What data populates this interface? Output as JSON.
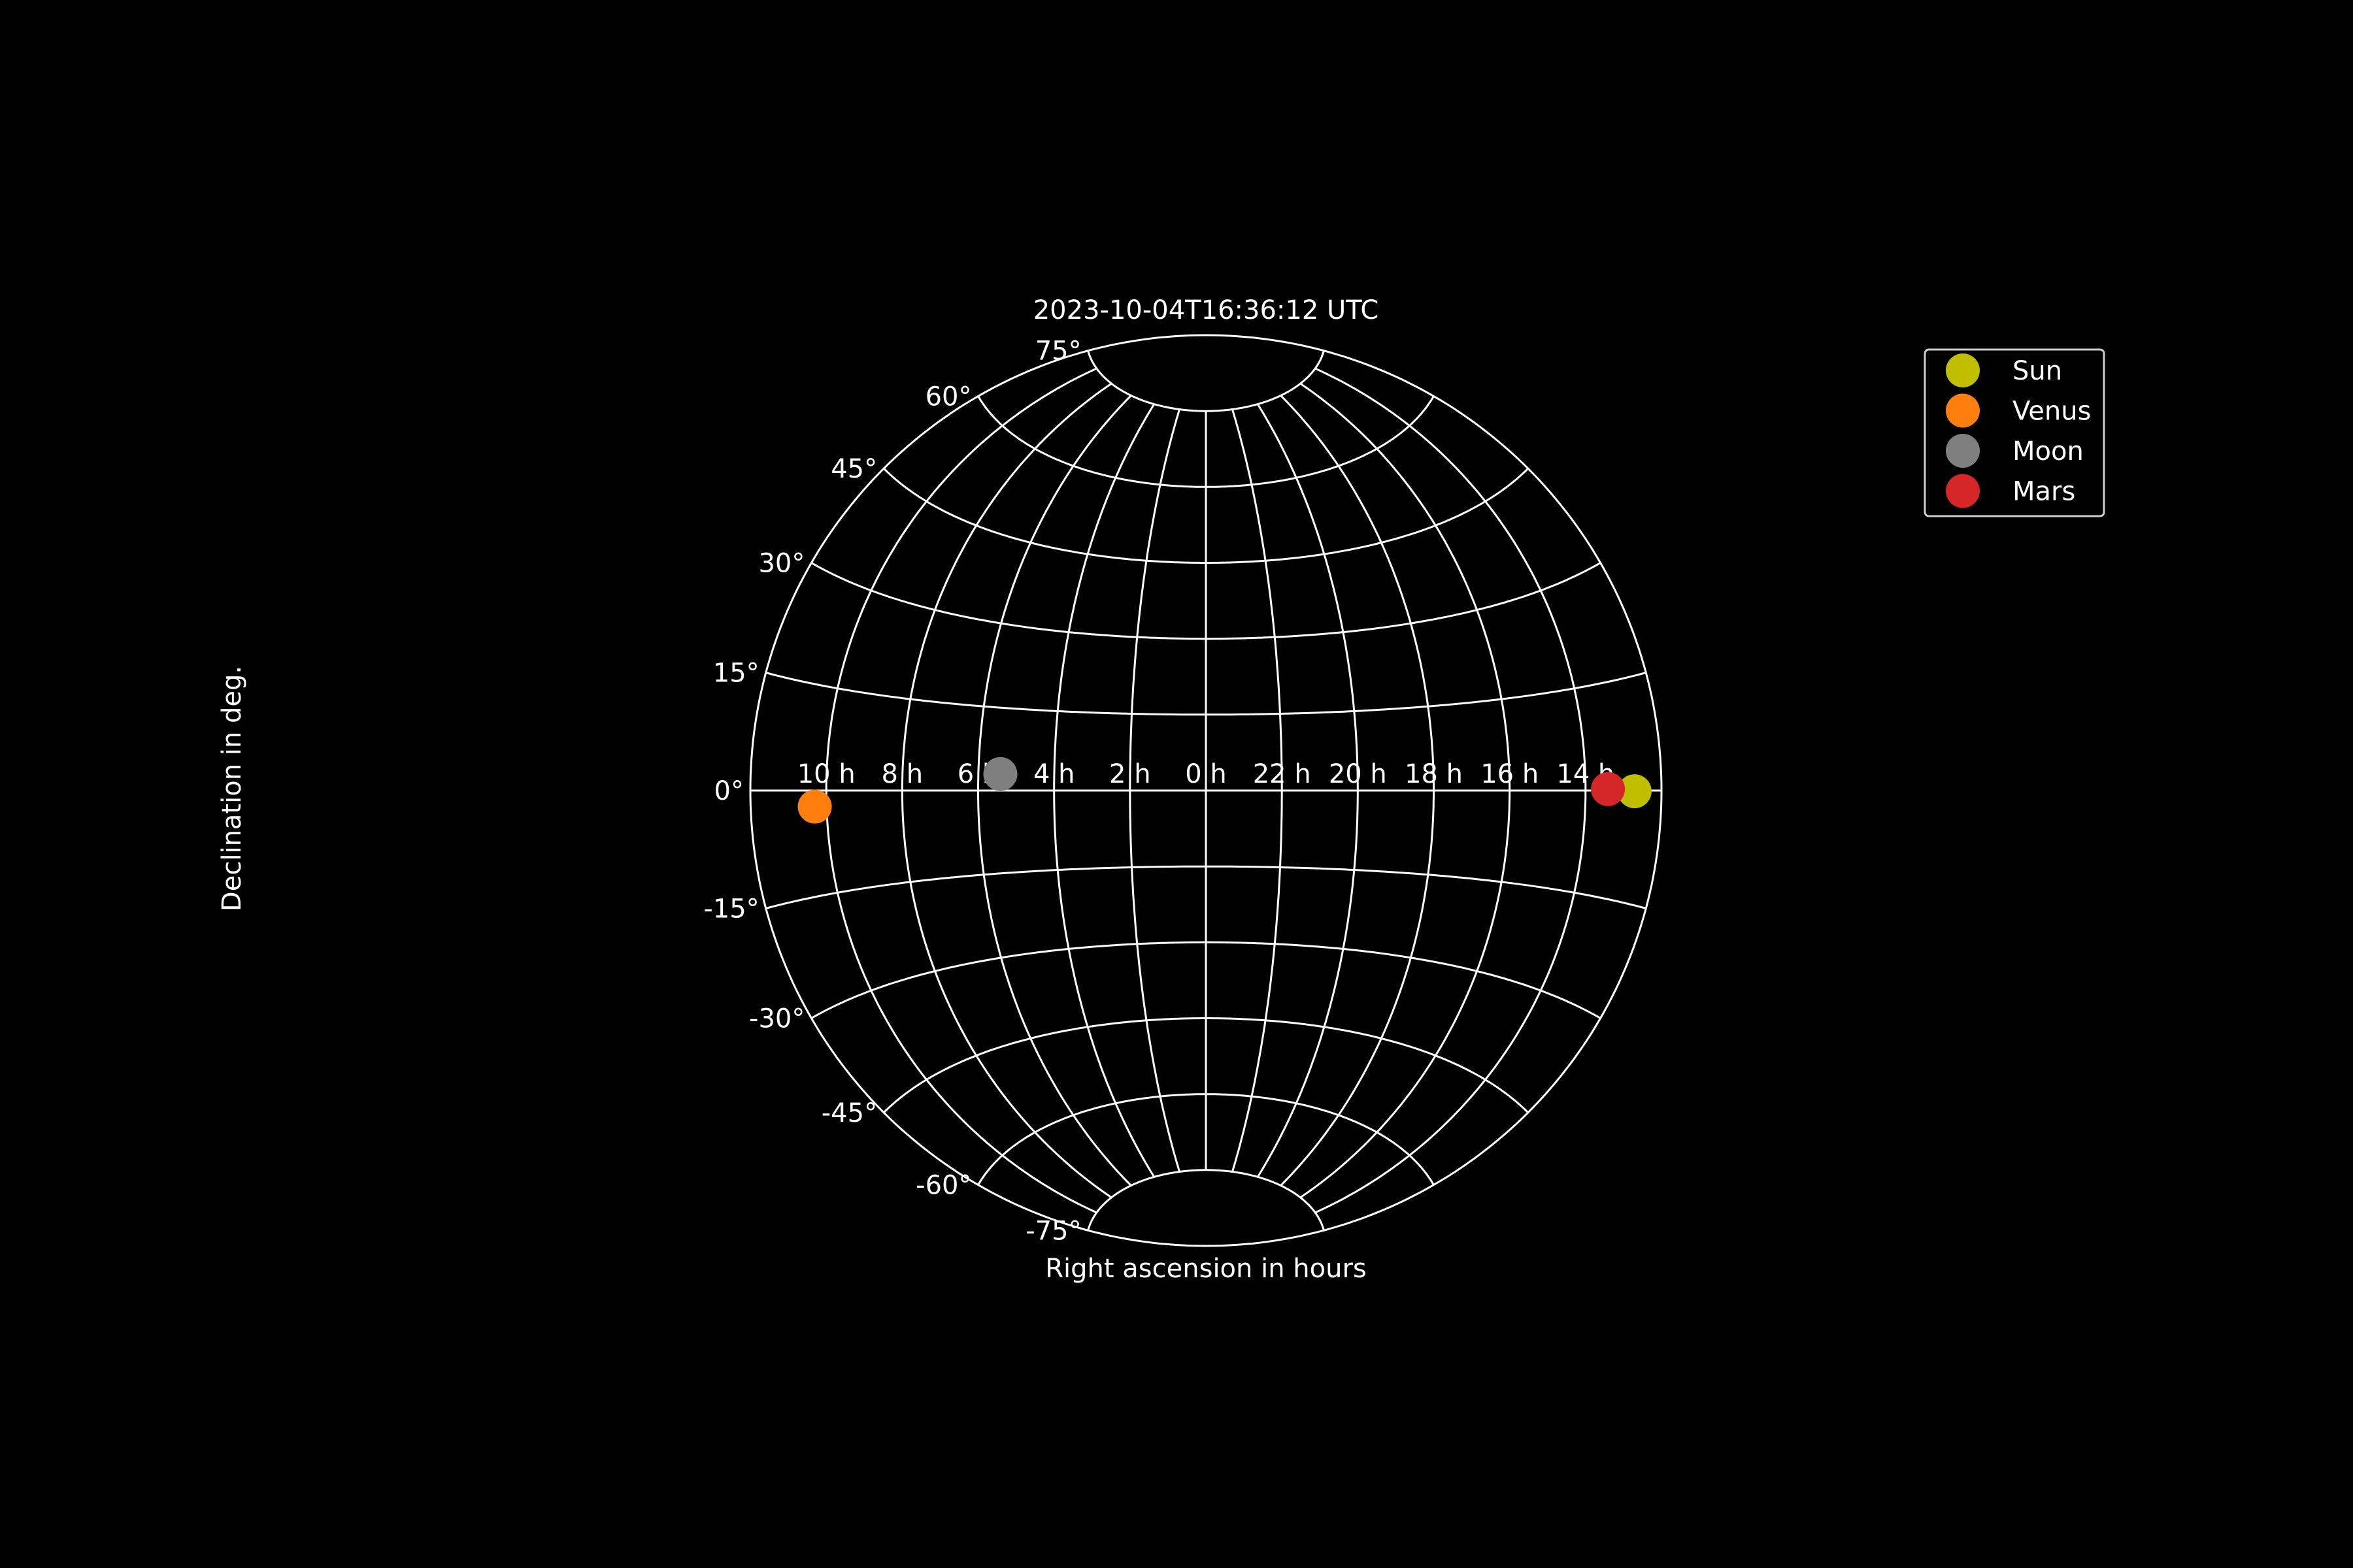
{
  "chart_data": {
    "type": "scatter",
    "projection": "aitoff",
    "title": "2023-10-04T16:36:12 UTC",
    "xlabel": "Right ascension in hours",
    "ylabel": "Declination in deg.",
    "xlim": [
      -180,
      180
    ],
    "ylim": [
      -90,
      90
    ],
    "grid": true,
    "legend_position": "top-right",
    "background_color": "#000000",
    "grid_color": "#ffffff",
    "x_ticks": [
      {
        "ra_deg": 150,
        "label": "10 h"
      },
      {
        "ra_deg": 120,
        "label": "8 h"
      },
      {
        "ra_deg": 90,
        "label": "6 h"
      },
      {
        "ra_deg": 60,
        "label": "4 h"
      },
      {
        "ra_deg": 30,
        "label": "2 h"
      },
      {
        "ra_deg": 0,
        "label": "0 h"
      },
      {
        "ra_deg": -30,
        "label": "22 h"
      },
      {
        "ra_deg": -60,
        "label": "20 h"
      },
      {
        "ra_deg": -90,
        "label": "18 h"
      },
      {
        "ra_deg": -120,
        "label": "16 h"
      },
      {
        "ra_deg": -150,
        "label": "14 h"
      }
    ],
    "y_ticks": [
      {
        "dec": 75,
        "label": "75°"
      },
      {
        "dec": 60,
        "label": "60°"
      },
      {
        "dec": 45,
        "label": "45°"
      },
      {
        "dec": 30,
        "label": "30°"
      },
      {
        "dec": 15,
        "label": "15°"
      },
      {
        "dec": 0,
        "label": "0°"
      },
      {
        "dec": -15,
        "label": "-15°"
      },
      {
        "dec": -30,
        "label": "-30°"
      },
      {
        "dec": -45,
        "label": "-45°"
      },
      {
        "dec": -60,
        "label": "-60°"
      },
      {
        "dec": -75,
        "label": "-75°"
      }
    ],
    "series": [
      {
        "name": "Sun",
        "color": "#bfbf00",
        "ra_hours": 12.71,
        "dec_deg": -0.1
      },
      {
        "name": "Venus",
        "color": "#ff7f0e",
        "ra_hours": 10.31,
        "dec_deg": -2.3
      },
      {
        "name": "Moon",
        "color": "#7f7f7f",
        "ra_hours": 5.42,
        "dec_deg": 3.0
      },
      {
        "name": "Mars",
        "color": "#d62728",
        "ra_hours": 13.41,
        "dec_deg": 0.2
      }
    ]
  }
}
